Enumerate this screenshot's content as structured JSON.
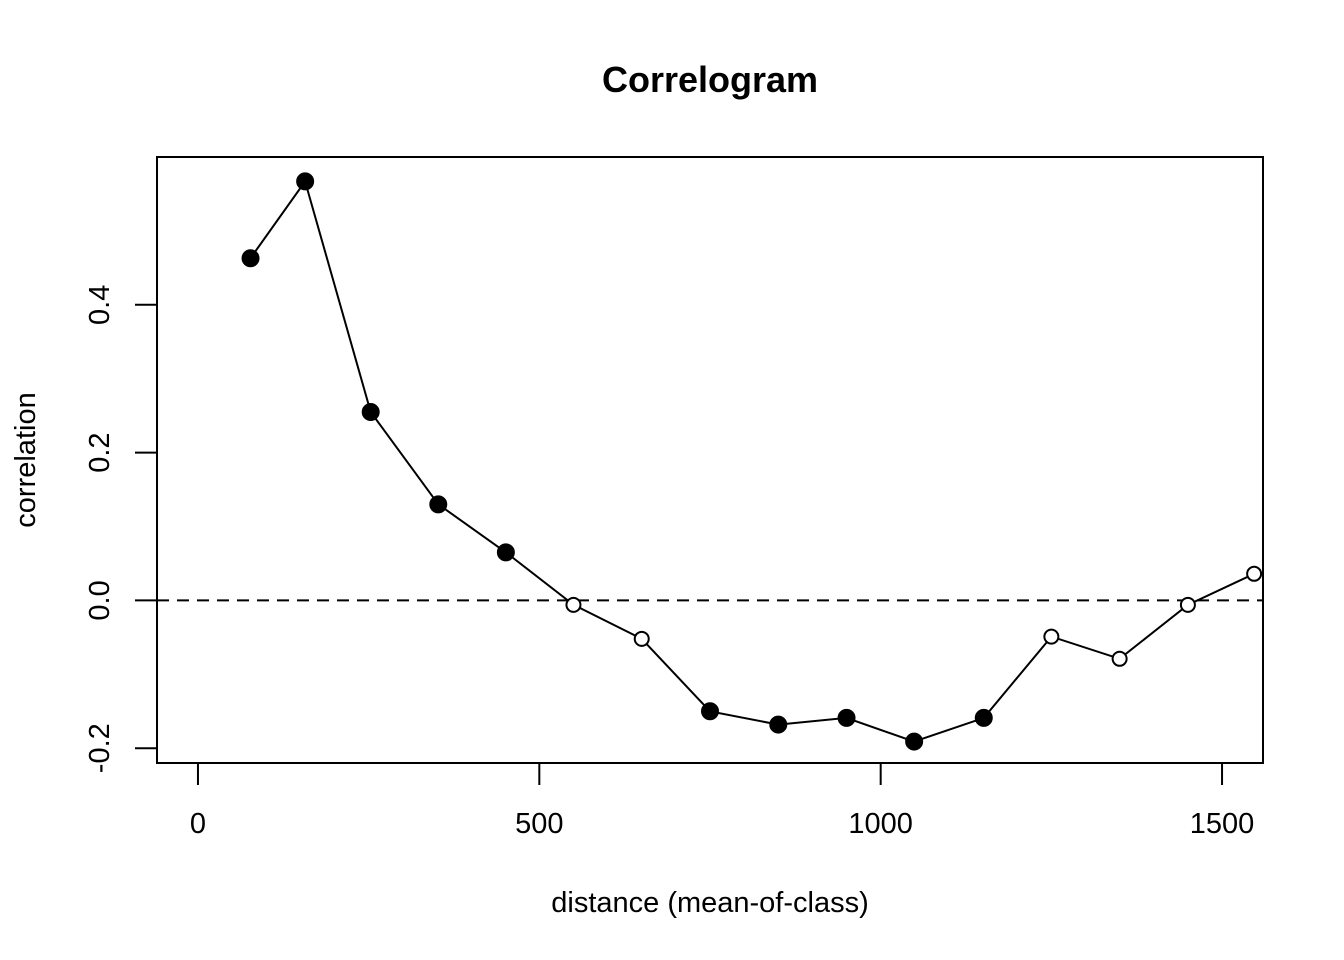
{
  "chart_data": {
    "type": "line",
    "title": "Correlogram",
    "xlabel": "distance (mean-of-class)",
    "ylabel": "correlation",
    "xlim": [
      -60,
      1560
    ],
    "ylim": [
      -0.22,
      0.6
    ],
    "x_ticks": [
      0,
      500,
      1000,
      1500
    ],
    "x_tick_labels": [
      "0",
      "500",
      "1000",
      "1500"
    ],
    "y_ticks": [
      -0.2,
      0.0,
      0.2,
      0.4
    ],
    "y_tick_labels": [
      "-0.2",
      "0.0",
      "0.2",
      "0.4"
    ],
    "reference_line": {
      "y": 0,
      "style": "dashed"
    },
    "grid": false,
    "legend": "none",
    "series": [
      {
        "x": [
          77,
          157,
          253,
          352,
          451,
          550,
          650,
          750,
          850,
          950,
          1049,
          1151,
          1250,
          1350,
          1450,
          1547
        ],
        "values": [
          0.463,
          0.567,
          0.255,
          0.13,
          0.065,
          -0.006,
          -0.052,
          -0.15,
          -0.168,
          -0.159,
          -0.191,
          -0.159,
          -0.049,
          -0.079,
          -0.006,
          0.036
        ],
        "significant": [
          true,
          true,
          true,
          true,
          true,
          false,
          false,
          true,
          true,
          true,
          true,
          true,
          false,
          false,
          false,
          false
        ]
      }
    ],
    "colors": {
      "line": "#000000",
      "marker": "#000000",
      "background": "#ffffff"
    }
  }
}
